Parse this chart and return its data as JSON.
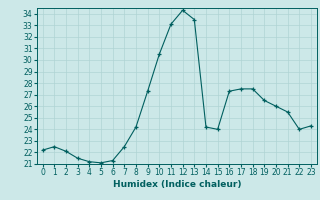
{
  "xlabel": "Humidex (Indice chaleur)",
  "x": [
    0,
    1,
    2,
    3,
    4,
    5,
    6,
    7,
    8,
    9,
    10,
    11,
    12,
    13,
    14,
    15,
    16,
    17,
    18,
    19,
    20,
    21,
    22,
    23
  ],
  "y": [
    22.2,
    22.5,
    22.1,
    21.5,
    21.2,
    21.1,
    21.3,
    22.5,
    24.2,
    27.3,
    30.5,
    33.1,
    34.3,
    33.5,
    24.2,
    24.0,
    27.3,
    27.5,
    27.5,
    26.5,
    26.0,
    25.5,
    24.0,
    24.3
  ],
  "ylim": [
    21,
    34.5
  ],
  "xlim": [
    -0.5,
    23.5
  ],
  "yticks": [
    21,
    22,
    23,
    24,
    25,
    26,
    27,
    28,
    29,
    30,
    31,
    32,
    33,
    34
  ],
  "xticks": [
    0,
    1,
    2,
    3,
    4,
    5,
    6,
    7,
    8,
    9,
    10,
    11,
    12,
    13,
    14,
    15,
    16,
    17,
    18,
    19,
    20,
    21,
    22,
    23
  ],
  "line_color": "#005f5f",
  "marker": "+",
  "bg_color": "#cce8e8",
  "grid_color": "#b0d4d4",
  "xlabel_fontsize": 6.5,
  "tick_fontsize": 5.5
}
